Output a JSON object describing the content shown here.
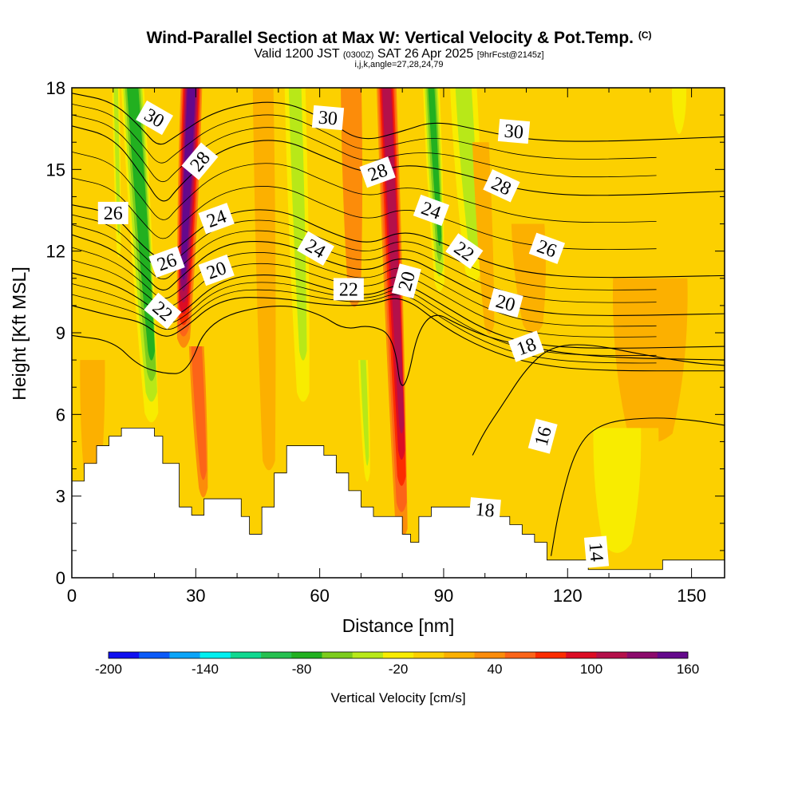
{
  "header": {
    "title_main": "Wind-Parallel Section at Max W: Vertical Velocity & Pot.Temp.",
    "title_copyright": "(C)",
    "valid_prefix": "Valid 1200 JST",
    "valid_utc": "(0300Z)",
    "valid_date": "SAT 26 Apr 2025",
    "forecast_info": "[9hrFcst@2145z]",
    "indices": "i,j,k,angle=27,28,24,79"
  },
  "chart_data": {
    "type": "heatmap",
    "title": "Wind-Parallel Section at Max W: Vertical Velocity & Pot.Temp.",
    "xlabel": "Distance [nm]",
    "ylabel": "Height [Kft MSL]",
    "xlim": [
      0,
      158
    ],
    "ylim": [
      0,
      18
    ],
    "x_ticks": [
      0,
      30,
      60,
      90,
      120,
      150
    ],
    "y_ticks": [
      0,
      3,
      6,
      9,
      12,
      15,
      18
    ],
    "grid": false,
    "colorbar": {
      "label": "Vertical Velocity [cm/s]",
      "tick_values": [
        -200,
        -140,
        -80,
        -20,
        40,
        100,
        160
      ],
      "colors": [
        "#1010f0",
        "#0a5af8",
        "#0aa4f8",
        "#00f0f0",
        "#10d890",
        "#26c050",
        "#22b020",
        "#7ccc1c",
        "#b8e818",
        "#f8ec00",
        "#fcd000",
        "#fcb000",
        "#fc8c0a",
        "#fc6418",
        "#fc2c00",
        "#dc0c24",
        "#b4104a",
        "#8c0a6c",
        "#64088c"
      ]
    },
    "background_level_color": "#fcd000",
    "velocity_features": [
      {
        "x": 17,
        "ztop": 18,
        "zbot": 5,
        "tilt": 0.35,
        "halfwidth": 3.2,
        "value": -85
      },
      {
        "x": 28,
        "ztop": 18,
        "zbot": 8.5,
        "tilt": -0.2,
        "halfwidth": 2.6,
        "value": 150
      },
      {
        "x": 31,
        "ztop": 8.5,
        "zbot": 3,
        "tilt": 0.3,
        "halfwidth": 1.8,
        "value": 60
      },
      {
        "x": 55,
        "ztop": 18,
        "zbot": 5,
        "tilt": 0.15,
        "halfwidth": 3.5,
        "value": -30
      },
      {
        "x": 47,
        "ztop": 18,
        "zbot": 4,
        "tilt": 0.1,
        "halfwidth": 2.5,
        "value": 15
      },
      {
        "x": 78,
        "ztop": 18,
        "zbot": 1.5,
        "tilt": 0.22,
        "halfwidth": 2.4,
        "value": 105
      },
      {
        "x": 71,
        "ztop": 8,
        "zbot": 3,
        "tilt": 0.2,
        "halfwidth": 1.6,
        "value": -45
      },
      {
        "x": 88,
        "ztop": 18,
        "zbot": 10,
        "tilt": 0.25,
        "halfwidth": 2.4,
        "value": -80
      },
      {
        "x": 96,
        "ztop": 18,
        "zbot": 10,
        "tilt": 0.3,
        "halfwidth": 4.5,
        "value": -35
      },
      {
        "x": 11,
        "ztop": 18,
        "zbot": 11,
        "tilt": 0.1,
        "halfwidth": 1.2,
        "value": -30
      },
      {
        "x": 68,
        "ztop": 18,
        "zbot": 10,
        "tilt": 0.1,
        "halfwidth": 2.5,
        "value": 30
      },
      {
        "x": 100,
        "ztop": 16,
        "zbot": 9,
        "tilt": 0.3,
        "halfwidth": 2.0,
        "value": 20
      },
      {
        "x": 111,
        "ztop": 13,
        "zbot": 9,
        "tilt": 0.3,
        "halfwidth": 4.0,
        "value": 25
      },
      {
        "x": 140,
        "ztop": 11,
        "zbot": 5,
        "tilt": 0.0,
        "halfwidth": 9.0,
        "value": 20
      },
      {
        "x": 132,
        "ztop": 5.5,
        "zbot": 0,
        "tilt": 0.0,
        "halfwidth": 10.0,
        "value": -15
      },
      {
        "x": 147,
        "ztop": 18,
        "zbot": 16,
        "tilt": 0.0,
        "halfwidth": 3.0,
        "value": -25
      },
      {
        "x": 5,
        "ztop": 8,
        "zbot": 3,
        "tilt": 0.0,
        "halfwidth": 3.0,
        "value": 25
      }
    ],
    "terrain": [
      {
        "x": 0,
        "z": 3.55
      },
      {
        "x": 3,
        "z": 4.2
      },
      {
        "x": 6,
        "z": 4.85
      },
      {
        "x": 9,
        "z": 5.2
      },
      {
        "x": 12,
        "z": 5.5
      },
      {
        "x": 18,
        "z": 5.5
      },
      {
        "x": 20,
        "z": 5.2
      },
      {
        "x": 22,
        "z": 4.2
      },
      {
        "x": 26,
        "z": 2.6
      },
      {
        "x": 29,
        "z": 2.3
      },
      {
        "x": 32,
        "z": 2.9
      },
      {
        "x": 38,
        "z": 2.9
      },
      {
        "x": 41,
        "z": 2.25
      },
      {
        "x": 43,
        "z": 1.6
      },
      {
        "x": 46,
        "z": 2.6
      },
      {
        "x": 49,
        "z": 3.85
      },
      {
        "x": 52,
        "z": 4.85
      },
      {
        "x": 58,
        "z": 4.85
      },
      {
        "x": 61,
        "z": 4.5
      },
      {
        "x": 64,
        "z": 3.85
      },
      {
        "x": 67,
        "z": 3.2
      },
      {
        "x": 70,
        "z": 2.6
      },
      {
        "x": 73,
        "z": 2.25
      },
      {
        "x": 77,
        "z": 2.25
      },
      {
        "x": 80,
        "z": 1.6
      },
      {
        "x": 82,
        "z": 1.3
      },
      {
        "x": 84,
        "z": 2.25
      },
      {
        "x": 87,
        "z": 2.6
      },
      {
        "x": 94,
        "z": 2.6
      },
      {
        "x": 97,
        "z": 2.25
      },
      {
        "x": 103,
        "z": 2.25
      },
      {
        "x": 106,
        "z": 1.95
      },
      {
        "x": 109,
        "z": 1.6
      },
      {
        "x": 112,
        "z": 1.3
      },
      {
        "x": 115,
        "z": 0.65
      },
      {
        "x": 121,
        "z": 0.65
      },
      {
        "x": 125,
        "z": 0.3
      },
      {
        "x": 141,
        "z": 0.3
      },
      {
        "x": 143,
        "z": 0.65
      },
      {
        "x": 158,
        "z": 0.65
      }
    ],
    "isentropes": [
      {
        "theta": 30,
        "points": [
          [
            0,
            17.8
          ],
          [
            10,
            17.5
          ],
          [
            17,
            16.5
          ],
          [
            21,
            15.8
          ],
          [
            25,
            16.2
          ],
          [
            35,
            17.2
          ],
          [
            50,
            17.6
          ],
          [
            62,
            16.8
          ],
          [
            70,
            16.0
          ],
          [
            80,
            16.4
          ],
          [
            88,
            16.8
          ],
          [
            100,
            16.4
          ],
          [
            110,
            16.1
          ],
          [
            125,
            16.0
          ],
          [
            158,
            16.2
          ]
        ]
      },
      {
        "theta": 28,
        "points": [
          [
            0,
            16.6
          ],
          [
            10,
            16.2
          ],
          [
            17,
            14.8
          ],
          [
            22,
            13.6
          ],
          [
            26,
            14.4
          ],
          [
            36,
            15.8
          ],
          [
            50,
            16.2
          ],
          [
            62,
            15.4
          ],
          [
            72,
            14.8
          ],
          [
            80,
            15.2
          ],
          [
            90,
            15.0
          ],
          [
            100,
            14.6
          ],
          [
            110,
            14.2
          ],
          [
            125,
            14.0
          ],
          [
            158,
            14.2
          ]
        ]
      },
      {
        "theta": 26,
        "points": [
          [
            0,
            13.7
          ],
          [
            10,
            13.4
          ],
          [
            17,
            12.2
          ],
          [
            22,
            11.6
          ],
          [
            26,
            12.2
          ],
          [
            36,
            13.4
          ],
          [
            50,
            13.6
          ],
          [
            62,
            12.7
          ],
          [
            72,
            12.2
          ],
          [
            80,
            12.8
          ],
          [
            90,
            12.3
          ],
          [
            100,
            11.6
          ],
          [
            110,
            11.2
          ],
          [
            125,
            11.0
          ],
          [
            158,
            11.1
          ]
        ]
      },
      {
        "theta": 24,
        "points": [
          [
            0,
            12.6
          ],
          [
            10,
            12.1
          ],
          [
            17,
            11.2
          ],
          [
            22,
            10.4
          ],
          [
            26,
            11.0
          ],
          [
            36,
            12.3
          ],
          [
            50,
            12.4
          ],
          [
            62,
            11.6
          ],
          [
            72,
            11.2
          ],
          [
            80,
            11.9
          ],
          [
            90,
            11.1
          ],
          [
            100,
            10.3
          ],
          [
            110,
            9.8
          ],
          [
            125,
            9.6
          ],
          [
            158,
            9.7
          ]
        ]
      },
      {
        "theta": 22,
        "points": [
          [
            0,
            11.2
          ],
          [
            10,
            10.8
          ],
          [
            17,
            10.2
          ],
          [
            22,
            9.6
          ],
          [
            26,
            9.6
          ],
          [
            36,
            11.0
          ],
          [
            50,
            11.2
          ],
          [
            62,
            10.6
          ],
          [
            72,
            10.3
          ],
          [
            80,
            10.9
          ],
          [
            90,
            10.0
          ],
          [
            100,
            9.1
          ],
          [
            110,
            8.6
          ],
          [
            125,
            8.4
          ],
          [
            158,
            8.5
          ]
        ]
      },
      {
        "theta": 20,
        "points": [
          [
            0,
            10.0
          ],
          [
            10,
            9.6
          ],
          [
            17,
            9.4
          ],
          [
            22,
            8.8
          ],
          [
            26,
            9.0
          ],
          [
            36,
            10.3
          ],
          [
            50,
            10.3
          ],
          [
            62,
            10.0
          ],
          [
            72,
            10.0
          ],
          [
            80,
            10.4
          ],
          [
            90,
            9.2
          ],
          [
            100,
            8.4
          ],
          [
            110,
            7.9
          ],
          [
            125,
            7.6
          ],
          [
            158,
            7.6
          ]
        ]
      },
      {
        "theta": 18,
        "points": [
          [
            0,
            8.9
          ],
          [
            10,
            8.7
          ],
          [
            16,
            7.8
          ],
          [
            22,
            7.5
          ],
          [
            28,
            7.5
          ],
          [
            33,
            9.5
          ],
          [
            50,
            10.1
          ],
          [
            60,
            9.7
          ],
          [
            66,
            9.1
          ],
          [
            72,
            9.3
          ],
          [
            78,
            8.9
          ],
          [
            80,
            6.3
          ],
          [
            85,
            10.0
          ],
          [
            96,
            9.1
          ],
          [
            106,
            8.6
          ],
          [
            125,
            8.1
          ],
          [
            158,
            8.0
          ]
        ]
      },
      {
        "theta": 16,
        "points": [
          [
            97,
            4.5
          ],
          [
            100,
            5.4
          ],
          [
            104,
            6.3
          ],
          [
            110,
            7.7
          ],
          [
            116,
            8.5
          ],
          [
            125,
            8.6
          ],
          [
            138,
            8.2
          ],
          [
            150,
            7.9
          ],
          [
            158,
            7.8
          ]
        ]
      },
      {
        "theta": 14,
        "points": [
          [
            116,
            0.8
          ],
          [
            118,
            2.6
          ],
          [
            122,
            4.8
          ],
          [
            128,
            5.7
          ],
          [
            140,
            5.9
          ],
          [
            150,
            5.8
          ],
          [
            158,
            5.6
          ]
        ]
      }
    ],
    "contour_labels": [
      "30",
      "28",
      "26",
      "24",
      "22",
      "20",
      "18",
      "16",
      "14"
    ]
  }
}
